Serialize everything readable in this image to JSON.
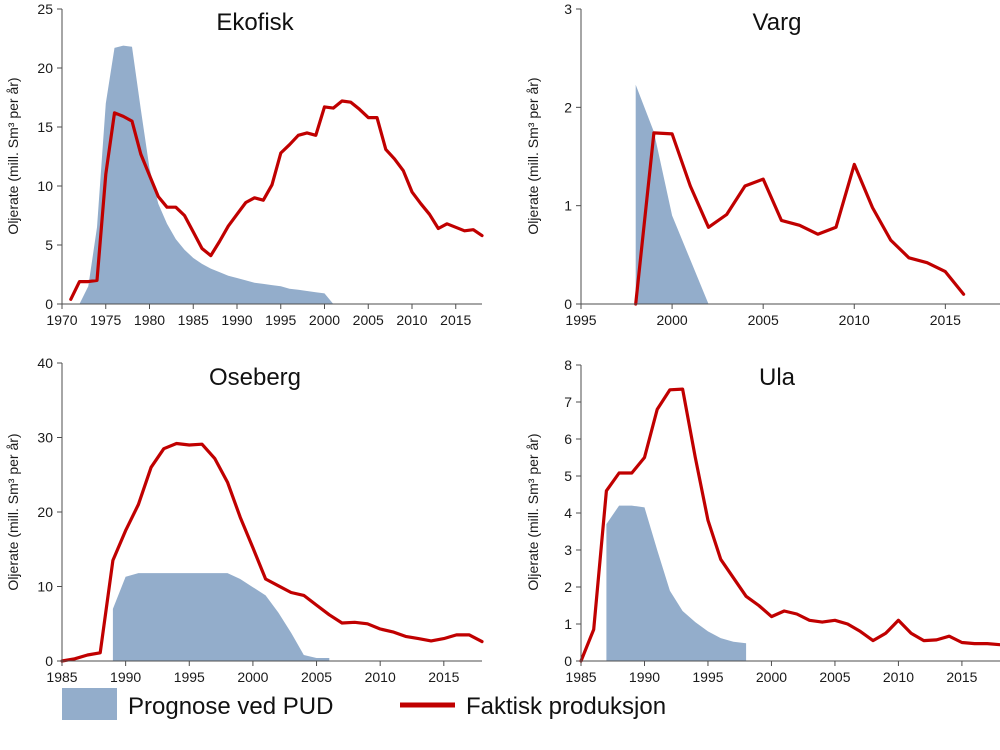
{
  "colors": {
    "forecast": "#93adcb",
    "actual": "#c00000",
    "axis": "#4d4d4d"
  },
  "legend": {
    "forecast_label": "Prognose ved PUD",
    "actual_label": "Faktisk produksjon"
  },
  "chart_data": [
    {
      "type": "area+line",
      "title": "Ekofisk",
      "ylabel": "Oljerate (mill. Sm³ per år)",
      "xlim": [
        1970,
        2018
      ],
      "ylim": [
        0,
        25
      ],
      "xticks": [
        1970,
        1975,
        1980,
        1985,
        1990,
        1995,
        2000,
        2005,
        2010,
        2015
      ],
      "yticks": [
        0,
        5,
        10,
        15,
        20,
        25
      ],
      "series": [
        {
          "name": "Prognose ved PUD",
          "kind": "area",
          "x": [
            1972,
            1973,
            1974,
            1975,
            1976,
            1977,
            1978,
            1979,
            1980,
            1981,
            1982,
            1983,
            1984,
            1985,
            1986,
            1987,
            1988,
            1989,
            1990,
            1991,
            1992,
            1993,
            1994,
            1995,
            1996,
            1997,
            1998,
            1999,
            2000,
            2001
          ],
          "y": [
            0,
            1.5,
            6.5,
            17,
            21.7,
            21.9,
            21.8,
            16.5,
            11.5,
            8.5,
            6.8,
            5.5,
            4.6,
            3.9,
            3.4,
            3.0,
            2.7,
            2.4,
            2.2,
            2.0,
            1.8,
            1.7,
            1.6,
            1.5,
            1.3,
            1.2,
            1.1,
            1.0,
            0.9,
            0
          ]
        },
        {
          "name": "Faktisk produksjon",
          "kind": "line",
          "x": [
            1971,
            1972,
            1973,
            1974,
            1975,
            1976,
            1977,
            1978,
            1979,
            1980,
            1981,
            1982,
            1983,
            1984,
            1985,
            1986,
            1987,
            1988,
            1989,
            1990,
            1991,
            1992,
            1993,
            1994,
            1995,
            1996,
            1997,
            1998,
            1999,
            2000,
            2001,
            2002,
            2003,
            2004,
            2005,
            2006,
            2007,
            2008,
            2009,
            2010,
            2011,
            2012,
            2013,
            2014,
            2015,
            2016,
            2017,
            2018
          ],
          "y": [
            0.4,
            1.9,
            1.9,
            2.0,
            11.0,
            16.2,
            15.9,
            15.5,
            12.7,
            10.9,
            9.1,
            8.2,
            8.2,
            7.5,
            6.1,
            4.7,
            4.1,
            5.3,
            6.6,
            7.6,
            8.6,
            9.0,
            8.8,
            10.1,
            12.8,
            13.5,
            14.3,
            14.5,
            14.3,
            16.7,
            16.6,
            17.2,
            17.1,
            16.5,
            15.8,
            15.8,
            13.1,
            12.3,
            11.3,
            9.5,
            8.5,
            7.6,
            6.4,
            6.8,
            6.5,
            6.2,
            6.3,
            5.8
          ]
        }
      ]
    },
    {
      "type": "area+line",
      "title": "Varg",
      "ylabel": "Oljerate (mill. Sm³ per år)",
      "xlim": [
        1995,
        2018
      ],
      "ylim": [
        0,
        3
      ],
      "xticks": [
        1995,
        2000,
        2005,
        2010,
        2015
      ],
      "yticks": [
        0,
        1,
        2,
        3
      ],
      "series": [
        {
          "name": "Prognose ved PUD",
          "kind": "area",
          "x": [
            1998,
            1998,
            1999,
            2000,
            2001,
            2002
          ],
          "y": [
            0,
            2.23,
            1.75,
            0.9,
            0.45,
            0
          ]
        },
        {
          "name": "Faktisk produksjon",
          "kind": "line",
          "x": [
            1998,
            1999,
            2000,
            2001,
            2002,
            2003,
            2004,
            2005,
            2006,
            2007,
            2008,
            2009,
            2010,
            2011,
            2012,
            2013,
            2014,
            2015,
            2016
          ],
          "y": [
            0.0,
            1.74,
            1.73,
            1.2,
            0.78,
            0.91,
            1.2,
            1.27,
            0.85,
            0.8,
            0.71,
            0.78,
            1.42,
            0.98,
            0.65,
            0.47,
            0.42,
            0.33,
            0.1
          ]
        }
      ]
    },
    {
      "type": "area+line",
      "title": "Oseberg",
      "ylabel": "Oljerate (mill. Sm³ per år)",
      "xlim": [
        1985,
        2018
      ],
      "ylim": [
        0,
        40
      ],
      "xticks": [
        1985,
        1990,
        1995,
        2000,
        2005,
        2010,
        2015
      ],
      "yticks": [
        0,
        10,
        20,
        30,
        40
      ],
      "series": [
        {
          "name": "Prognose ved PUD",
          "kind": "area",
          "x": [
            1989,
            1989,
            1990,
            1991,
            1992,
            1993,
            1994,
            1995,
            1996,
            1997,
            1998,
            1999,
            2000,
            2001,
            2002,
            2003,
            2004,
            2005,
            2006,
            2006
          ],
          "y": [
            0,
            7.0,
            11.3,
            11.8,
            11.8,
            11.8,
            11.8,
            11.8,
            11.8,
            11.8,
            11.8,
            11.0,
            9.9,
            8.8,
            6.5,
            3.8,
            0.8,
            0.4,
            0.4,
            0
          ]
        },
        {
          "name": "Faktisk produksjon",
          "kind": "line",
          "x": [
            1985,
            1986,
            1987,
            1988,
            1989,
            1990,
            1991,
            1992,
            1993,
            1994,
            1995,
            1996,
            1997,
            1998,
            1999,
            2000,
            2001,
            2002,
            2003,
            2004,
            2005,
            2006,
            2007,
            2008,
            2009,
            2010,
            2011,
            2012,
            2013,
            2014,
            2015,
            2016,
            2017,
            2018
          ],
          "y": [
            0.0,
            0.3,
            0.8,
            1.1,
            13.5,
            17.5,
            21.0,
            26.0,
            28.5,
            29.2,
            29.0,
            29.1,
            27.2,
            24.0,
            19.3,
            15.2,
            11.0,
            10.1,
            9.2,
            8.8,
            7.5,
            6.2,
            5.1,
            5.2,
            5.0,
            4.3,
            3.9,
            3.3,
            3.0,
            2.7,
            3.0,
            3.5,
            3.5,
            2.6
          ]
        }
      ]
    },
    {
      "type": "area+line",
      "title": "Ula",
      "ylabel": "Oljerate (mill. Sm³ per år)",
      "xlim": [
        1985,
        2018
      ],
      "ylim": [
        0,
        8
      ],
      "xticks": [
        1985,
        1990,
        1995,
        2000,
        2005,
        2010,
        2015
      ],
      "yticks": [
        0,
        1,
        2,
        3,
        4,
        5,
        6,
        7,
        8
      ],
      "series": [
        {
          "name": "Prognose ved PUD",
          "kind": "area",
          "x": [
            1987,
            1987,
            1988,
            1989,
            1990,
            1991,
            1992,
            1993,
            1994,
            1995,
            1996,
            1997,
            1998,
            1998
          ],
          "y": [
            0,
            3.7,
            4.2,
            4.2,
            4.15,
            3.0,
            1.9,
            1.35,
            1.05,
            0.8,
            0.62,
            0.52,
            0.48,
            0
          ]
        },
        {
          "name": "Faktisk produksjon",
          "kind": "line",
          "x": [
            1985,
            1986,
            1987,
            1988,
            1989,
            1990,
            1991,
            1992,
            1993,
            1994,
            1995,
            1996,
            1997,
            1998,
            1999,
            2000,
            2001,
            2002,
            2003,
            2004,
            2005,
            2006,
            2007,
            2008,
            2009,
            2010,
            2011,
            2012,
            2013,
            2014,
            2015,
            2016,
            2017,
            2018
          ],
          "y": [
            0.0,
            0.85,
            4.6,
            5.08,
            5.08,
            5.5,
            6.8,
            7.33,
            7.35,
            5.5,
            3.8,
            2.75,
            2.25,
            1.75,
            1.5,
            1.2,
            1.35,
            1.27,
            1.1,
            1.05,
            1.1,
            1.0,
            0.8,
            0.55,
            0.75,
            1.1,
            0.75,
            0.55,
            0.57,
            0.67,
            0.5,
            0.47,
            0.47,
            0.44
          ]
        }
      ]
    }
  ]
}
